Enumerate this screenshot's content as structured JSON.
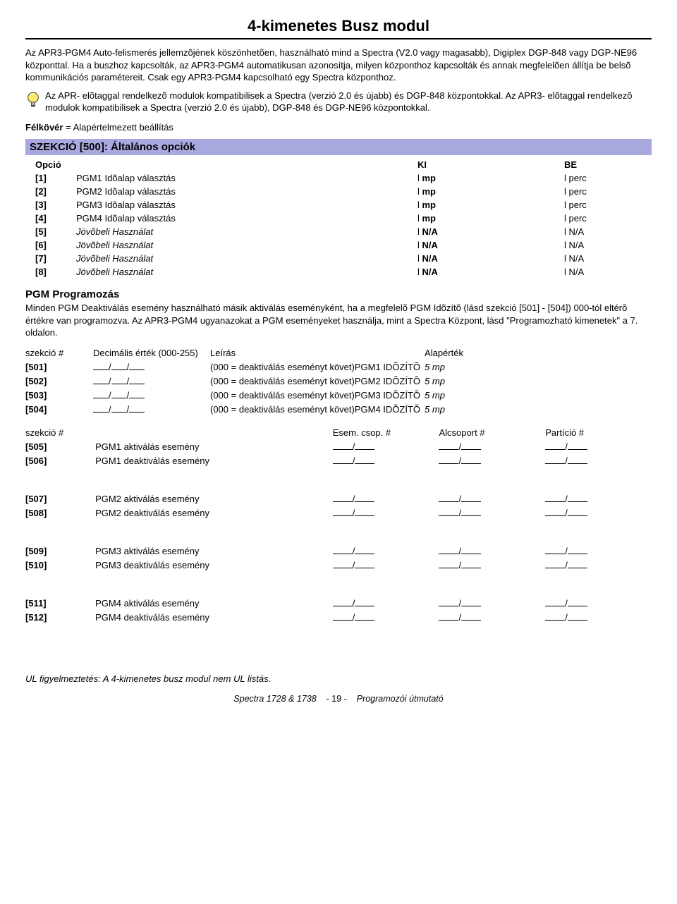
{
  "title": "4-kimenetes Busz modul",
  "intro1": "Az APR3-PGM4 Auto-felismerés jellemzõjének köszönhetõen, használható mind a Spectra (V2.0 vagy magasabb), Digiplex DGP-848 vagy DGP-NE96 központtal. Ha a buszhoz kapcsolták, az APR3-PGM4 automatikusan azonosítja, milyen központhoz kapcsolták és annak megfelelõen állítja be belsõ kommunikációs paramétereit. Csak egy APR3-PGM4 kapcsolható egy Spectra központhoz.",
  "note": "Az APR- elõtaggal rendelkezõ modulok kompatibilisek a Spectra (verzió 2.0 és újabb) és DGP-848 központokkal. Az APR3- elõtaggal rendelkezõ modulok kompatibilisek a Spectra (verzió 2.0 és újabb), DGP-848 és DGP-NE96 központokkal.",
  "bold_eq": "Félkövér",
  "eq_rest": " = Alapértelmezett beállítás",
  "section_bar": "SZEKCIÓ [500]: Általános opciók",
  "opt_head": {
    "c1": "Opció",
    "c2": "",
    "c3": "KI",
    "c4": "BE"
  },
  "opts": [
    {
      "n": "[1]",
      "d": "PGM1 Idõalap választás",
      "ki": "mp",
      "be": "perc",
      "ital": false
    },
    {
      "n": "[2]",
      "d": "PGM2 Idõalap választás",
      "ki": "mp",
      "be": "perc",
      "ital": false
    },
    {
      "n": "[3]",
      "d": "PGM3 Idõalap választás",
      "ki": "mp",
      "be": "perc",
      "ital": false
    },
    {
      "n": "[4]",
      "d": "PGM4 Idõalap választás",
      "ki": "mp",
      "be": "perc",
      "ital": false
    },
    {
      "n": "[5]",
      "d": "Jövõbeli Használat",
      "ki": "N/A",
      "be": "N/A",
      "ital": true
    },
    {
      "n": "[6]",
      "d": "Jövõbeli Használat",
      "ki": "N/A",
      "be": "N/A",
      "ital": true
    },
    {
      "n": "[7]",
      "d": "Jövõbeli Használat",
      "ki": "N/A",
      "be": "N/A",
      "ital": true
    },
    {
      "n": "[8]",
      "d": "Jövõbeli Használat",
      "ki": "N/A",
      "be": "N/A",
      "ital": true
    }
  ],
  "pgm_head": "PGM Programozás",
  "pgm_text": "Minden PGM Deaktiválás esemény használható másik aktiválás eseményként, ha a megfelelõ PGM Idõzítõ (lásd szekció [501] - [504]) 000-tól eltérõ értékre van programozva. Az APR3-PGM4 ugyanazokat a PGM eseményeket használja, mint a Spectra Központ, lásd \"Programozható kimenetek\" a 7. oldalon.",
  "dec_head": {
    "c1": "szekció #",
    "c2": "Decimális érték (000-255)",
    "c3": "Leírás",
    "c4": "Alapérték"
  },
  "dec_rows": [
    {
      "s": "[501]",
      "d": "(000 = deaktiválás eseményt követ)PGM1 IDÕZÍTÕ",
      "a": "5 mp"
    },
    {
      "s": "[502]",
      "d": "(000 = deaktiválás eseményt követ)PGM2 IDÕZÍTÕ",
      "a": "5 mp"
    },
    {
      "s": "[503]",
      "d": "(000 = deaktiválás eseményt követ)PGM3 IDÕZÍTÕ",
      "a": "5 mp"
    },
    {
      "s": "[504]",
      "d": "(000 = deaktiválás eseményt követ)PGM4 IDÕZÍTÕ",
      "a": "5 mp"
    }
  ],
  "ev_head": {
    "c1": "szekció #",
    "c3": "Esem. csop. #",
    "c4": "Alcsoport #",
    "c5": "Partíció #"
  },
  "ev_groups": [
    [
      {
        "s": "[505]",
        "d": "PGM1 aktiválás esemény"
      },
      {
        "s": "[506]",
        "d": "PGM1 deaktiválás esemény"
      }
    ],
    [
      {
        "s": "[507]",
        "d": "PGM2 aktiválás esemény"
      },
      {
        "s": "[508]",
        "d": "PGM2 deaktiválás esemény"
      }
    ],
    [
      {
        "s": "[509]",
        "d": "PGM3 aktiválás esemény"
      },
      {
        "s": "[510]",
        "d": "PGM3 deaktiválás esemény"
      }
    ],
    [
      {
        "s": "[511]",
        "d": "PGM4 aktiválás esemény"
      },
      {
        "s": "[512]",
        "d": "PGM4 deaktiválás esemény"
      }
    ]
  ],
  "ul_note": "UL figyelmeztetés: A 4-kimenetes busz modul nem UL listás.",
  "footer": {
    "left": "Spectra 1728 & 1738",
    "mid": "- 19 -",
    "right": "Programozói útmutató"
  }
}
